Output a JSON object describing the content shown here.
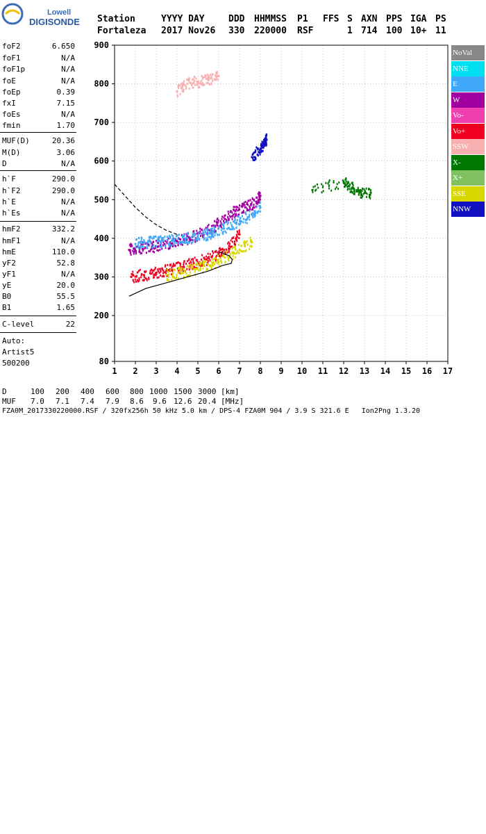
{
  "logo": {
    "line1": "Lowell",
    "line2": "DIGISONDE"
  },
  "header": {
    "line1": [
      "Station",
      "YYYY DAY",
      "DDD",
      "HHMMSS",
      "P1",
      "FFS",
      "S",
      "AXN",
      "PPS",
      "IGA",
      "PS"
    ],
    "line2": [
      "Fortaleza",
      "2017 Nov26",
      "330",
      "220000",
      "RSF",
      "1",
      "714",
      "100",
      "10+",
      "11"
    ]
  },
  "params_group1": [
    {
      "label": "foF2",
      "value": "6.650"
    },
    {
      "label": "foF1",
      "value": "N/A"
    },
    {
      "label": "foF1p",
      "value": "N/A"
    },
    {
      "label": "foE",
      "value": "N/A"
    },
    {
      "label": "foEp",
      "value": "0.39"
    },
    {
      "label": "fxI",
      "value": "7.15"
    },
    {
      "label": "foEs",
      "value": "N/A"
    },
    {
      "label": "fmin",
      "value": "1.70"
    }
  ],
  "params_group2": [
    {
      "label": "MUF(D)",
      "value": "20.36"
    },
    {
      "label": "M(D)",
      "value": "3.06"
    },
    {
      "label": "D",
      "value": "N/A"
    }
  ],
  "params_group3": [
    {
      "label": "h`F",
      "value": "290.0"
    },
    {
      "label": "h`F2",
      "value": "290.0"
    },
    {
      "label": "h`E",
      "value": "N/A"
    },
    {
      "label": "h`Es",
      "value": "N/A"
    }
  ],
  "params_group4": [
    {
      "label": "hmF2",
      "value": "332.2"
    },
    {
      "label": "hmF1",
      "value": "N/A"
    },
    {
      "label": "hmE",
      "value": "110.0"
    },
    {
      "label": "yF2",
      "value": "52.8"
    },
    {
      "label": "yF1",
      "value": "N/A"
    },
    {
      "label": "yE",
      "value": "20.0"
    },
    {
      "label": "B0",
      "value": "55.5"
    },
    {
      "label": "B1",
      "value": "1.65"
    }
  ],
  "clevel": {
    "label": "C-level",
    "value": "22"
  },
  "auto": [
    "Auto:",
    "Artist5",
    "500200"
  ],
  "legend": [
    {
      "label": "NoVal",
      "color": "#888888"
    },
    {
      "label": "NNE",
      "color": "#00e0f0"
    },
    {
      "label": "E",
      "color": "#40a8f8"
    },
    {
      "label": "W",
      "color": "#a000a0"
    },
    {
      "label": "Vo-",
      "color": "#f040b0"
    },
    {
      "label": "Vo+",
      "color": "#f00020"
    },
    {
      "label": "SSW",
      "color": "#f8b0b0"
    },
    {
      "label": "X-",
      "color": "#007800"
    },
    {
      "label": "X+",
      "color": "#80c060"
    },
    {
      "label": "SSE",
      "color": "#d8d800"
    },
    {
      "label": "NNW",
      "color": "#1010c0"
    }
  ],
  "chart_data": {
    "type": "scatter",
    "title": "",
    "xlabel": "",
    "ylabel": "",
    "xlim": [
      1,
      17
    ],
    "ylim": [
      80,
      900
    ],
    "xticks": [
      1,
      2,
      3,
      4,
      5,
      6,
      7,
      8,
      9,
      10,
      11,
      12,
      13,
      14,
      15,
      16,
      17
    ],
    "yticks": [
      80,
      200,
      300,
      400,
      500,
      600,
      700,
      800,
      900
    ],
    "grid": "dotted",
    "series": [
      {
        "name": "W",
        "color": "#a000a0",
        "x": [
          1.7,
          2.2,
          2.8,
          3.4,
          4.0,
          4.6,
          5.2,
          5.8,
          6.3,
          6.8,
          7.3,
          7.8,
          8.0
        ],
        "y": [
          370,
          375,
          378,
          385,
          392,
          400,
          412,
          430,
          450,
          470,
          480,
          495,
          510
        ]
      },
      {
        "name": "E",
        "color": "#40a8f8",
        "x": [
          2.0,
          2.6,
          3.2,
          3.8,
          4.4,
          5.0,
          5.6,
          6.2,
          6.8,
          7.4,
          8.0
        ],
        "y": [
          385,
          390,
          392,
          395,
          400,
          405,
          412,
          425,
          440,
          455,
          480
        ]
      },
      {
        "name": "Vo+",
        "color": "#f00020",
        "x": [
          1.8,
          2.4,
          3.0,
          3.6,
          4.2,
          4.8,
          5.4,
          6.0,
          6.5,
          7.0
        ],
        "y": [
          300,
          305,
          310,
          318,
          325,
          335,
          345,
          360,
          380,
          410
        ]
      },
      {
        "name": "SSE",
        "color": "#d8d800",
        "x": [
          3.5,
          4.2,
          4.9,
          5.6,
          6.3,
          7.0,
          7.6
        ],
        "y": [
          305,
          310,
          320,
          330,
          350,
          370,
          390
        ]
      },
      {
        "name": "SSW",
        "color": "#f8b0b0",
        "x": [
          4.0,
          4.5,
          5.0,
          5.5,
          6.0
        ],
        "y": [
          780,
          800,
          805,
          810,
          820
        ]
      },
      {
        "name": "NNW",
        "color": "#1010c0",
        "x": [
          7.6,
          8.0,
          8.2,
          8.3
        ],
        "y": [
          610,
          630,
          645,
          655
        ]
      },
      {
        "name": "X-",
        "color": "#007800",
        "x": [
          10.5,
          12.0,
          12.4,
          12.8,
          13.3
        ],
        "y": [
          525,
          545,
          530,
          520,
          518
        ]
      }
    ],
    "curves": [
      {
        "name": "profile",
        "style": "solid",
        "x": [
          1.7,
          2.5,
          3.5,
          4.5,
          5.5,
          6.2,
          6.6,
          6.65,
          6.5,
          6.0
        ],
        "y": [
          250,
          270,
          285,
          300,
          315,
          330,
          335,
          345,
          355,
          365
        ]
      },
      {
        "name": "virtual",
        "style": "dashed",
        "x": [
          1.0,
          1.5,
          2.0,
          2.5,
          3.0,
          3.5,
          4.0
        ],
        "y": [
          540,
          510,
          480,
          455,
          435,
          420,
          410
        ]
      }
    ]
  },
  "footer": {
    "row1": [
      "D",
      "100",
      "200",
      "400",
      "600",
      "800",
      "1000",
      "1500",
      "3000",
      "[km]"
    ],
    "row2": [
      "MUF",
      "7.0",
      "7.1",
      "7.4",
      "7.9",
      "8.6",
      "9.6",
      "12.6",
      "20.4",
      "[MHz]"
    ],
    "info": "FZA0M_2017330220000.RSF / 320fx256h 50 kHz 5.0 km / DPS-4 FZA0M 904 / 3.9 S 321.6 E   Ion2Png 1.3.20"
  }
}
